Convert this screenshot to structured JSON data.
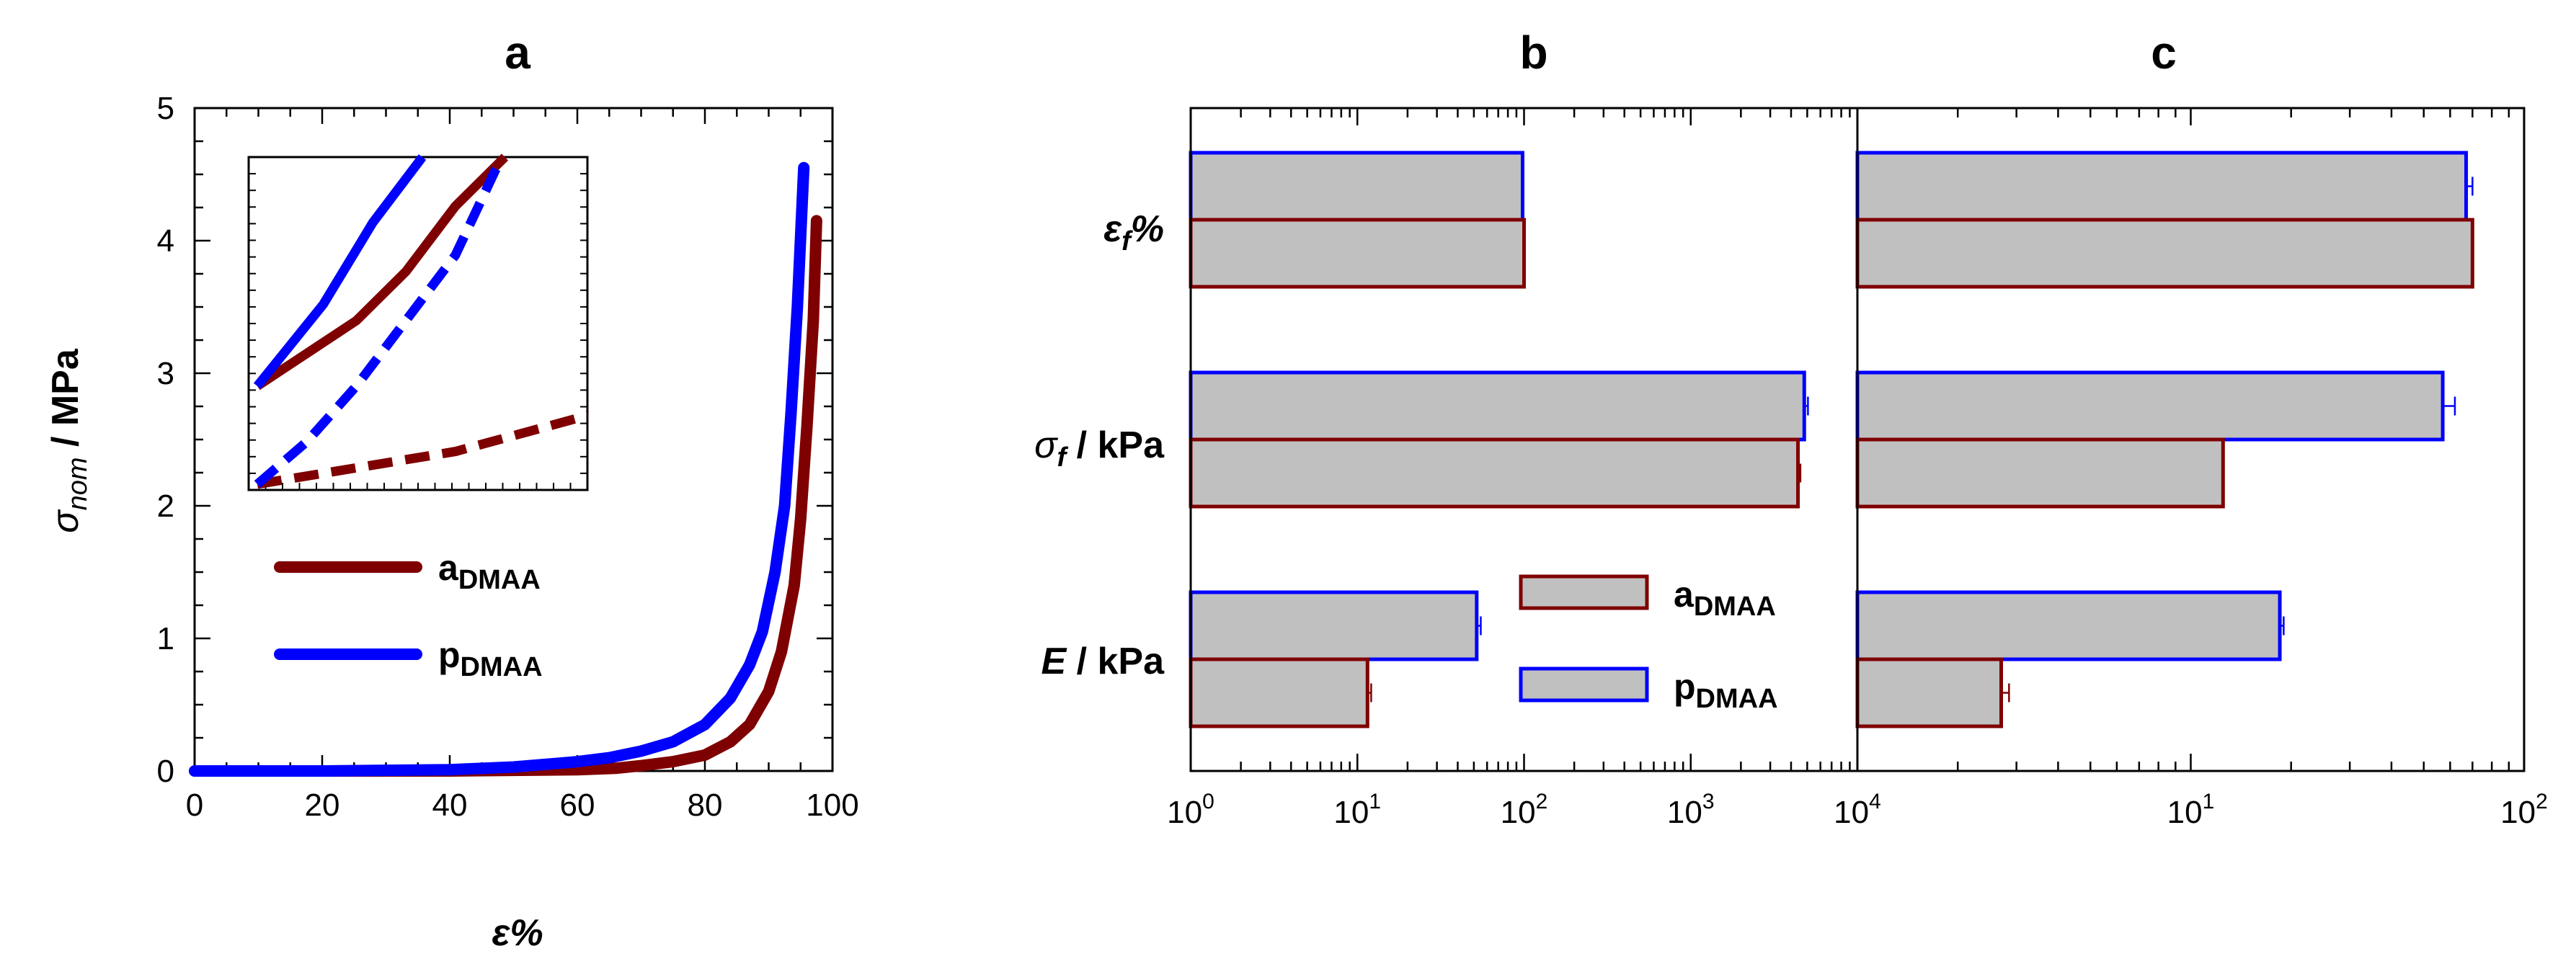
{
  "colors": {
    "a": "#7f0000",
    "p": "#0000ff",
    "bar_fill": "#c0c0c0",
    "axis": "#000000"
  },
  "chart_data": [
    {
      "panel": "a",
      "type": "line",
      "title": "a",
      "xlabel": "ε%",
      "ylabel": {
        "main": "σ",
        "sub": "nom",
        "rest": " / MPa"
      },
      "xlim": [
        0,
        100
      ],
      "ylim": [
        0,
        5
      ],
      "xticks": [
        "0",
        "20",
        "40",
        "60",
        "80",
        "100"
      ],
      "yticks": [
        "0",
        "1",
        "2",
        "3",
        "4",
        "5"
      ],
      "legend": {
        "position": "middle-left",
        "entries": [
          {
            "series": "a",
            "main": "a",
            "sub": "DMAA"
          },
          {
            "series": "p",
            "main": "p",
            "sub": "DMAA"
          }
        ]
      },
      "series": [
        {
          "name": "aDMAA",
          "color_key": "a",
          "points": [
            [
              0,
              0
            ],
            [
              20,
              0
            ],
            [
              40,
              0
            ],
            [
              60,
              0.01
            ],
            [
              66,
              0.02
            ],
            [
              70,
              0.04
            ],
            [
              75,
              0.07
            ],
            [
              80,
              0.12
            ],
            [
              84,
              0.22
            ],
            [
              87,
              0.35
            ],
            [
              90,
              0.6
            ],
            [
              92,
              0.9
            ],
            [
              94,
              1.4
            ],
            [
              95,
              1.9
            ],
            [
              96,
              2.6
            ],
            [
              97,
              3.4
            ],
            [
              97.5,
              4.15
            ]
          ]
        },
        {
          "name": "pDMAA",
          "color_key": "p",
          "points": [
            [
              0,
              0
            ],
            [
              20,
              0
            ],
            [
              40,
              0.01
            ],
            [
              50,
              0.03
            ],
            [
              60,
              0.07
            ],
            [
              65,
              0.1
            ],
            [
              70,
              0.15
            ],
            [
              75,
              0.22
            ],
            [
              80,
              0.35
            ],
            [
              84,
              0.55
            ],
            [
              87,
              0.8
            ],
            [
              89,
              1.05
            ],
            [
              91,
              1.5
            ],
            [
              92.5,
              2.0
            ],
            [
              93.5,
              2.7
            ],
            [
              94.5,
              3.5
            ],
            [
              95.5,
              4.55
            ]
          ]
        }
      ],
      "inset": {
        "series": [
          {
            "name": "a solid",
            "color_key": "a",
            "style": "solid",
            "points": [
              [
                0,
                0.3
              ],
              [
                0.15,
                0.4
              ],
              [
                0.3,
                0.5
              ],
              [
                0.45,
                0.65
              ],
              [
                0.6,
                0.85
              ],
              [
                0.75,
                1.0
              ]
            ]
          },
          {
            "name": "a dashed",
            "color_key": "a",
            "style": "dashed",
            "points": [
              [
                0,
                0
              ],
              [
                0.3,
                0.05
              ],
              [
                0.6,
                0.1
              ],
              [
                1.0,
                0.21
              ]
            ]
          },
          {
            "name": "p solid",
            "color_key": "p",
            "style": "solid",
            "points": [
              [
                0,
                0.3
              ],
              [
                0.2,
                0.55
              ],
              [
                0.35,
                0.8
              ],
              [
                0.5,
                1.0
              ]
            ]
          },
          {
            "name": "p dashed",
            "color_key": "p",
            "style": "dashed",
            "points": [
              [
                0,
                0
              ],
              [
                0.15,
                0.13
              ],
              [
                0.3,
                0.3
              ],
              [
                0.45,
                0.5
              ],
              [
                0.6,
                0.7
              ],
              [
                0.74,
                1.0
              ]
            ]
          }
        ]
      }
    },
    {
      "panel": "b",
      "type": "bar",
      "orientation": "horizontal",
      "xscale": "log",
      "title": "b",
      "xlim": [
        1,
        10000
      ],
      "xticks": [
        {
          "value": 1,
          "base": "10",
          "exp": "0"
        },
        {
          "value": 10,
          "base": "10",
          "exp": "1"
        },
        {
          "value": 100,
          "base": "10",
          "exp": "2"
        },
        {
          "value": 1000,
          "base": "10",
          "exp": "3"
        },
        {
          "value": 10000,
          "base": "10",
          "exp": "4"
        }
      ],
      "categories": [
        "E / kPa",
        "σf / kPa",
        "εf%"
      ],
      "series": [
        {
          "name": "pDMAA",
          "color_key": "p",
          "values": [
            52,
            4800,
            98
          ],
          "errors": [
            3,
            250,
            0
          ]
        },
        {
          "name": "aDMAA",
          "color_key": "a",
          "values": [
            11.5,
            4400,
            100
          ],
          "errors": [
            0.6,
            150,
            0
          ]
        }
      ],
      "legend": {
        "position": "bottom-right",
        "entries": [
          {
            "series": "a",
            "main": "a",
            "sub": "DMAA"
          },
          {
            "series": "p",
            "main": "p",
            "sub": "DMAA"
          }
        ]
      }
    },
    {
      "panel": "c",
      "type": "bar",
      "orientation": "horizontal",
      "xscale": "log",
      "title": "c",
      "xlim": [
        1,
        100
      ],
      "xticks": [
        {
          "value": 10,
          "base": "10",
          "exp": "1"
        },
        {
          "value": 100,
          "base": "10",
          "exp": "2"
        }
      ],
      "categories": [
        "E / kPa",
        "σf / kPa",
        "εf%"
      ],
      "series": [
        {
          "name": "pDMAA",
          "color_key": "p",
          "values": [
            18.5,
            57,
            67
          ],
          "errors": [
            0.5,
            5,
            3
          ]
        },
        {
          "name": "aDMAA",
          "color_key": "a",
          "values": [
            2.7,
            12.5,
            70
          ],
          "errors": [
            0.15,
            0,
            0
          ]
        }
      ]
    }
  ],
  "category_labels": [
    {
      "main": "ε",
      "sub": "f",
      "rest": "%"
    },
    {
      "main": "σ",
      "sub": "f",
      "rest": " / kPa"
    },
    {
      "main": "E",
      "sub": "",
      "rest": " / kPa"
    }
  ]
}
